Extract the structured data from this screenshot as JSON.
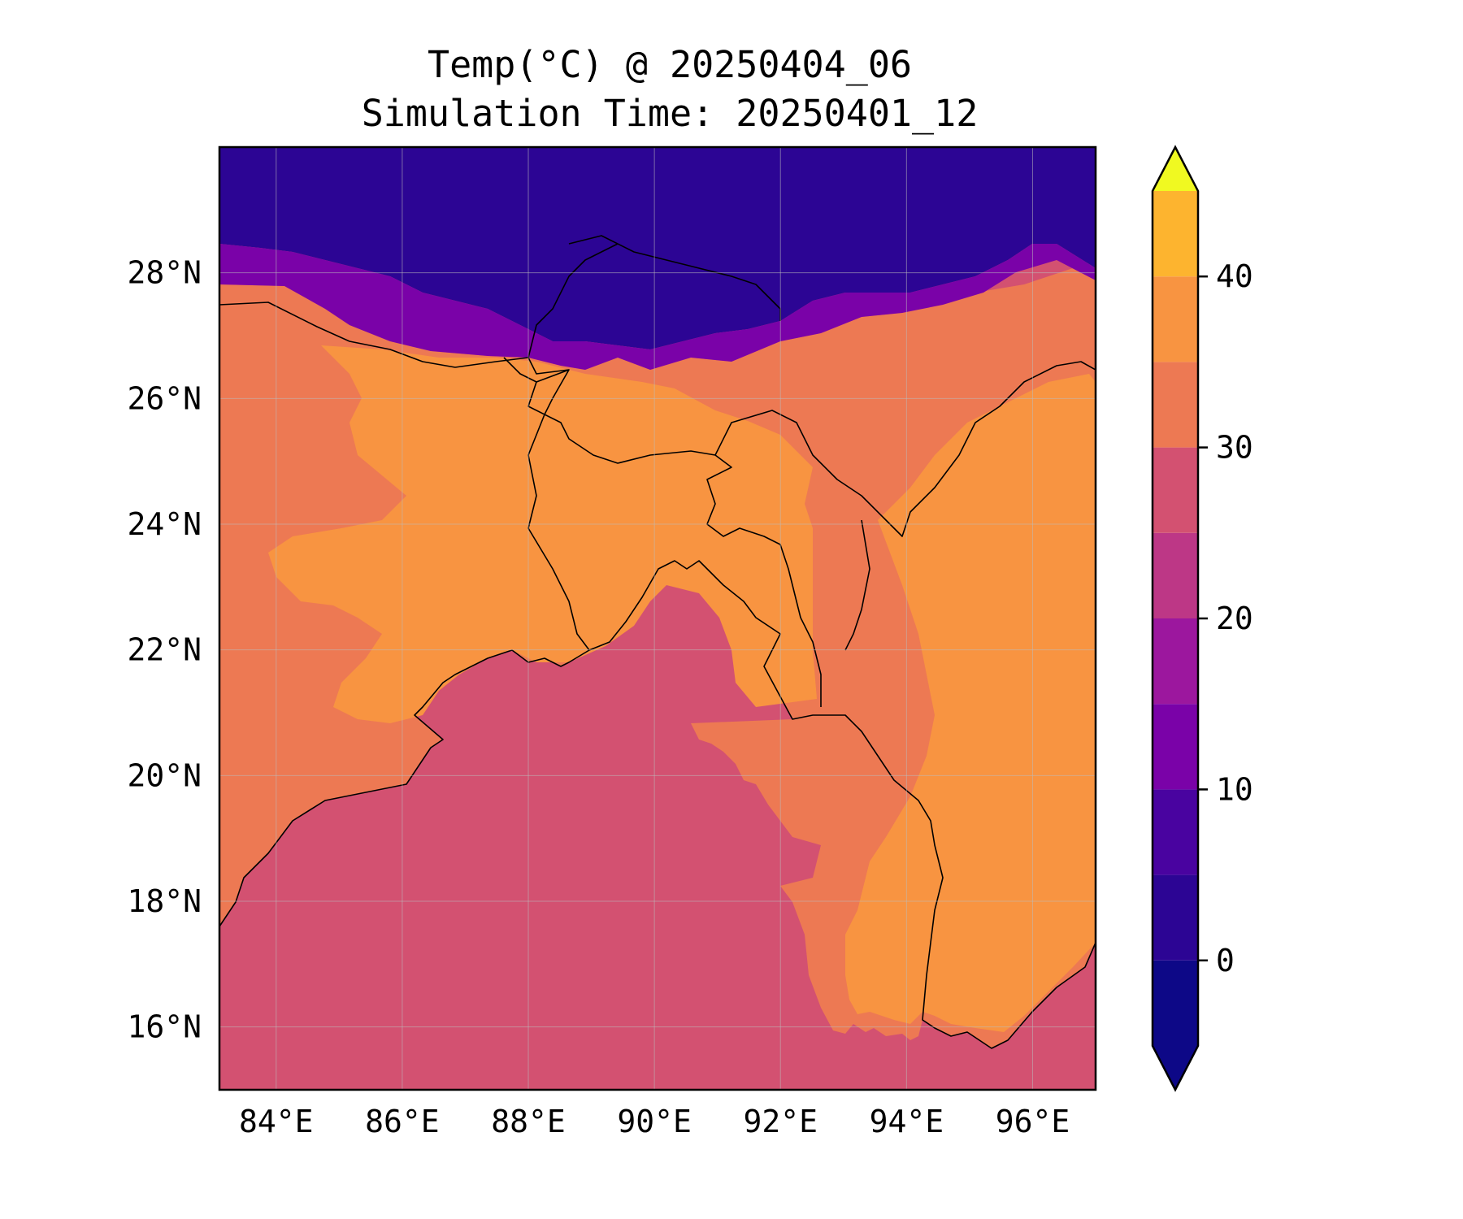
{
  "title": {
    "line1": "Temp(°C) @ 20250404_06",
    "line2": "Simulation Time: 20250401_12"
  },
  "map": {
    "projection": "PlateCarree",
    "lon_range": [
      83.1,
      97.0
    ],
    "lat_range": [
      15.0,
      30.0
    ],
    "grid": true,
    "coastlines": true,
    "borders": true,
    "lon_ticks": [
      {
        "value": 84,
        "label": "84°E"
      },
      {
        "value": 86,
        "label": "86°E"
      },
      {
        "value": 88,
        "label": "88°E"
      },
      {
        "value": 90,
        "label": "90°E"
      },
      {
        "value": 92,
        "label": "92°E"
      },
      {
        "value": 94,
        "label": "94°E"
      },
      {
        "value": 96,
        "label": "96°E"
      }
    ],
    "lat_ticks": [
      {
        "value": 16,
        "label": "16°N"
      },
      {
        "value": 18,
        "label": "18°N"
      },
      {
        "value": 20,
        "label": "20°N"
      },
      {
        "value": 22,
        "label": "22°N"
      },
      {
        "value": 24,
        "label": "24°N"
      },
      {
        "value": 26,
        "label": "26°N"
      },
      {
        "value": 28,
        "label": "28°N"
      }
    ],
    "field": {
      "sea_value": 27.5,
      "lowland_value": 37.5,
      "plateau_value": 32.5,
      "himalaya_value": 2.5
    }
  },
  "colorbar": {
    "colormap": "plasma",
    "extend": "both",
    "levels": [
      -5,
      0,
      5,
      10,
      15,
      20,
      25,
      30,
      35,
      40,
      45
    ],
    "colors": [
      "#0d0887",
      "#2c0594",
      "#4903a0",
      "#7a02a8",
      "#9c179e",
      "#bd3786",
      "#d35171",
      "#ed7953",
      "#f89441",
      "#fdb42f",
      "#f0f921"
    ],
    "under_color": "#0d0887",
    "over_color": "#f0f921",
    "ticks": [
      {
        "value": 0,
        "label": "0"
      },
      {
        "value": 10,
        "label": "10"
      },
      {
        "value": 20,
        "label": "20"
      },
      {
        "value": 30,
        "label": "30"
      },
      {
        "value": 40,
        "label": "40"
      }
    ]
  }
}
